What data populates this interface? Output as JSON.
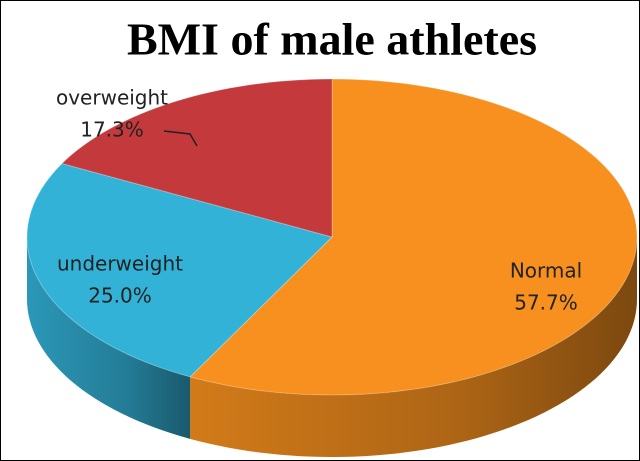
{
  "chart_data": {
    "type": "pie",
    "title": "BMI of male athletes",
    "categories": [
      "Normal",
      "underweight",
      "overweight"
    ],
    "values": [
      57.7,
      25.0,
      17.3
    ],
    "value_labels": [
      "57.7%",
      "25.0%",
      "17.3%"
    ],
    "colors": [
      "#f7901e",
      "#33b2d8",
      "#c3393c"
    ]
  }
}
